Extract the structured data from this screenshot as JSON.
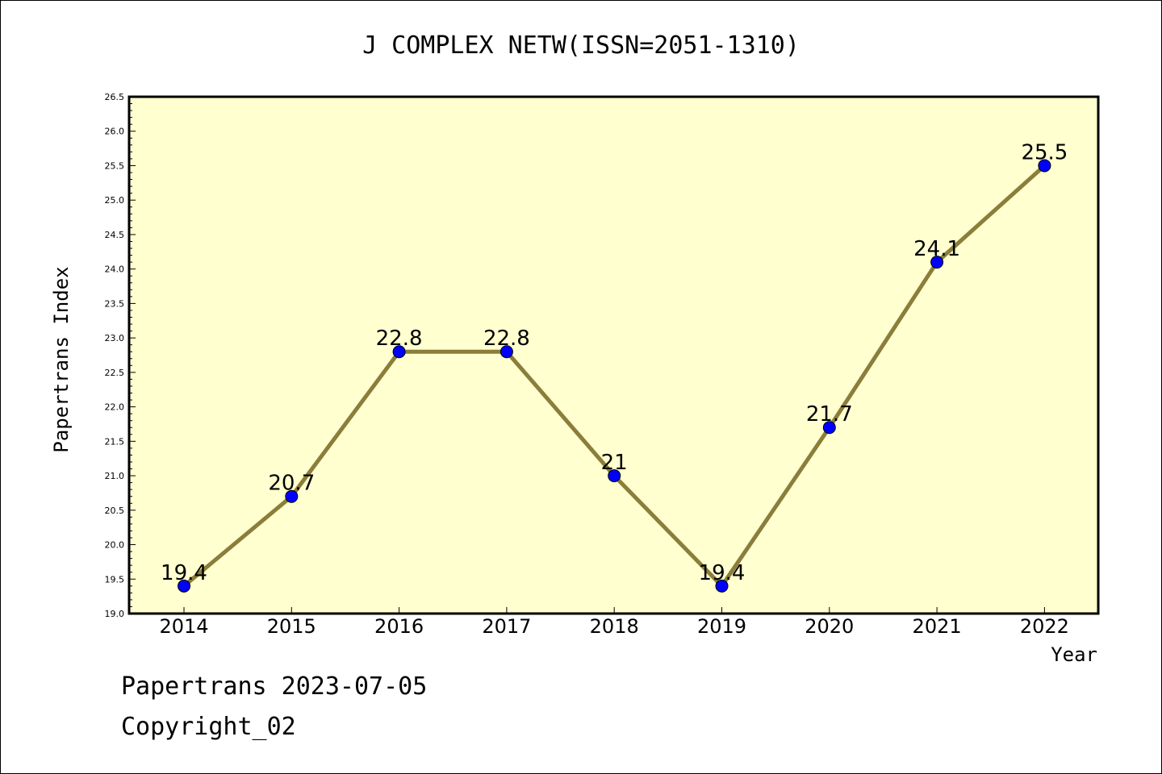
{
  "colors": {
    "plot_background": "#ffffd0",
    "line": "#8b7d3a",
    "marker": "#0000ff",
    "axis": "#000000"
  },
  "chart_data": {
    "type": "line",
    "title": "J COMPLEX NETW(ISSN=2051-1310)",
    "xlabel": "Year",
    "ylabel": "Papertrans Index",
    "categories": [
      "2014",
      "2015",
      "2016",
      "2017",
      "2018",
      "2019",
      "2020",
      "2021",
      "2022"
    ],
    "values": [
      19.4,
      20.7,
      22.8,
      22.8,
      21.0,
      19.4,
      21.7,
      24.1,
      25.5
    ],
    "data_labels": [
      "19.4",
      "20.7",
      "22.8",
      "22.8",
      "21",
      "19.4",
      "21.7",
      "24.1",
      "25.5"
    ],
    "ylim": [
      19.0,
      26.5
    ],
    "yticks": [
      "19.0",
      "19.5",
      "20.0",
      "20.5",
      "21.0",
      "21.5",
      "22.0",
      "22.5",
      "23.0",
      "23.5",
      "24.0",
      "24.5",
      "25.0",
      "25.5",
      "26.0",
      "26.5"
    ],
    "grid": false,
    "legend": "none"
  },
  "footer": {
    "line1": "Papertrans 2023-07-05",
    "line2": "Copyright_02"
  }
}
